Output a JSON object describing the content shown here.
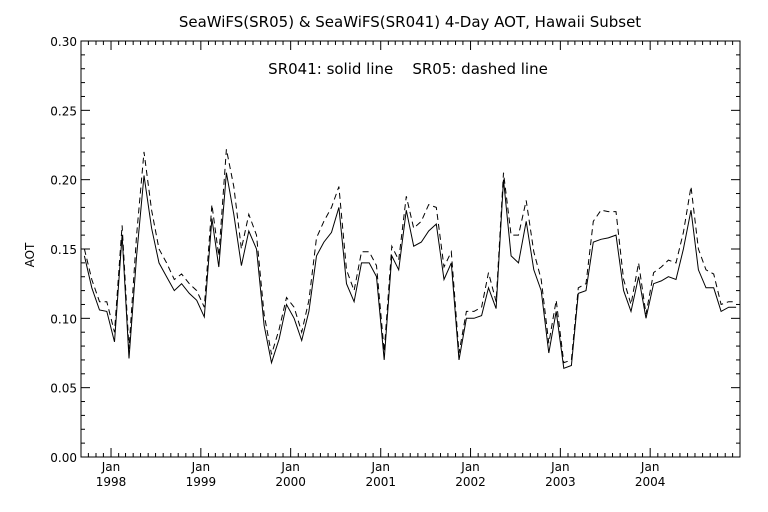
{
  "chart_data": {
    "type": "line",
    "title": "SeaWiFS(SR05) & SeaWiFS(SR041) 4-Day AOT, Hawaii Subset",
    "annotation": "SR041: solid line    SR05: dashed line",
    "ylabel": "AOT",
    "xlabel": "",
    "ylim": [
      0.0,
      0.3
    ],
    "y_ticks": [
      "0.00",
      "0.05",
      "0.10",
      "0.15",
      "0.20",
      "0.25",
      "0.30"
    ],
    "x_ticks": [
      {
        "date": "1998-01-01",
        "month": "Jan",
        "year": "1998"
      },
      {
        "date": "1999-01-01",
        "month": "Jan",
        "year": "1999"
      },
      {
        "date": "2000-01-01",
        "month": "Jan",
        "year": "2000"
      },
      {
        "date": "2001-01-01",
        "month": "Jan",
        "year": "2001"
      },
      {
        "date": "2002-01-01",
        "month": "Jan",
        "year": "2002"
      },
      {
        "date": "2003-01-01",
        "month": "Jan",
        "year": "2003"
      },
      {
        "date": "2004-01-01",
        "month": "Jan",
        "year": "2004"
      }
    ],
    "xlim": [
      "1997-09-01",
      "2004-12-31"
    ],
    "x": [
      "1997-09-15",
      "1997-10-15",
      "1997-11-15",
      "1997-12-15",
      "1998-01-15",
      "1998-02-15",
      "1998-03-15",
      "1998-04-15",
      "1998-05-15",
      "1998-06-15",
      "1998-07-15",
      "1998-08-15",
      "1998-09-15",
      "1998-10-15",
      "1998-11-15",
      "1998-12-15",
      "1999-01-15",
      "1999-02-15",
      "1999-03-15",
      "1999-04-15",
      "1999-05-15",
      "1999-06-15",
      "1999-07-15",
      "1999-08-15",
      "1999-09-15",
      "1999-10-15",
      "1999-11-15",
      "1999-12-15",
      "2000-01-15",
      "2000-02-15",
      "2000-03-15",
      "2000-04-15",
      "2000-05-15",
      "2000-06-15",
      "2000-07-15",
      "2000-08-15",
      "2000-09-15",
      "2000-10-15",
      "2000-11-15",
      "2000-12-15",
      "2001-01-15",
      "2001-02-15",
      "2001-03-15",
      "2001-04-15",
      "2001-05-15",
      "2001-06-15",
      "2001-07-15",
      "2001-08-15",
      "2001-09-15",
      "2001-10-15",
      "2001-11-15",
      "2001-12-15",
      "2002-01-15",
      "2002-02-15",
      "2002-03-15",
      "2002-04-15",
      "2002-05-15",
      "2002-06-15",
      "2002-07-15",
      "2002-08-15",
      "2002-09-15",
      "2002-10-15",
      "2002-11-15",
      "2002-12-15",
      "2003-01-15",
      "2003-02-15",
      "2003-03-15",
      "2003-04-15",
      "2003-05-15",
      "2003-06-15",
      "2003-07-15",
      "2003-08-15",
      "2003-09-15",
      "2003-10-15",
      "2003-11-15",
      "2003-12-15",
      "2004-01-15",
      "2004-02-15",
      "2004-03-15",
      "2004-04-15",
      "2004-05-15",
      "2004-06-15",
      "2004-07-15",
      "2004-08-15",
      "2004-09-15",
      "2004-10-15",
      "2004-11-15",
      "2004-12-15"
    ],
    "series": [
      {
        "name": "SR041",
        "style": "solid",
        "values": [
          0.145,
          0.122,
          0.106,
          0.105,
          0.083,
          0.16,
          0.071,
          0.145,
          0.203,
          0.165,
          0.14,
          0.13,
          0.12,
          0.125,
          0.118,
          0.113,
          0.101,
          0.172,
          0.137,
          0.205,
          0.175,
          0.138,
          0.163,
          0.15,
          0.095,
          0.068,
          0.085,
          0.11,
          0.1,
          0.084,
          0.105,
          0.145,
          0.155,
          0.162,
          0.18,
          0.125,
          0.112,
          0.14,
          0.14,
          0.13,
          0.07,
          0.145,
          0.135,
          0.178,
          0.152,
          0.155,
          0.163,
          0.168,
          0.128,
          0.14,
          0.07,
          0.1,
          0.1,
          0.102,
          0.122,
          0.107,
          0.2,
          0.145,
          0.14,
          0.17,
          0.135,
          0.12,
          0.075,
          0.105,
          0.064,
          0.066,
          0.118,
          0.12,
          0.155,
          0.157,
          0.158,
          0.16,
          0.12,
          0.105,
          0.13,
          0.1,
          0.125,
          0.127,
          0.13,
          0.128,
          0.15,
          0.178,
          0.135,
          0.122,
          0.122,
          0.105,
          0.108,
          0.108
        ]
      },
      {
        "name": "SR05",
        "style": "dashed",
        "values": [
          0.15,
          0.128,
          0.112,
          0.112,
          0.09,
          0.167,
          0.078,
          0.16,
          0.22,
          0.178,
          0.15,
          0.14,
          0.128,
          0.132,
          0.125,
          0.12,
          0.108,
          0.182,
          0.145,
          0.222,
          0.195,
          0.15,
          0.175,
          0.16,
          0.103,
          0.074,
          0.092,
          0.115,
          0.108,
          0.09,
          0.113,
          0.158,
          0.17,
          0.18,
          0.195,
          0.135,
          0.12,
          0.148,
          0.148,
          0.138,
          0.076,
          0.152,
          0.142,
          0.188,
          0.165,
          0.17,
          0.182,
          0.18,
          0.137,
          0.148,
          0.075,
          0.105,
          0.105,
          0.108,
          0.133,
          0.112,
          0.205,
          0.16,
          0.16,
          0.185,
          0.148,
          0.128,
          0.082,
          0.113,
          0.068,
          0.07,
          0.122,
          0.125,
          0.17,
          0.178,
          0.177,
          0.177,
          0.128,
          0.11,
          0.14,
          0.103,
          0.133,
          0.137,
          0.142,
          0.14,
          0.162,
          0.195,
          0.15,
          0.135,
          0.132,
          0.11,
          0.112,
          0.112
        ]
      }
    ]
  }
}
